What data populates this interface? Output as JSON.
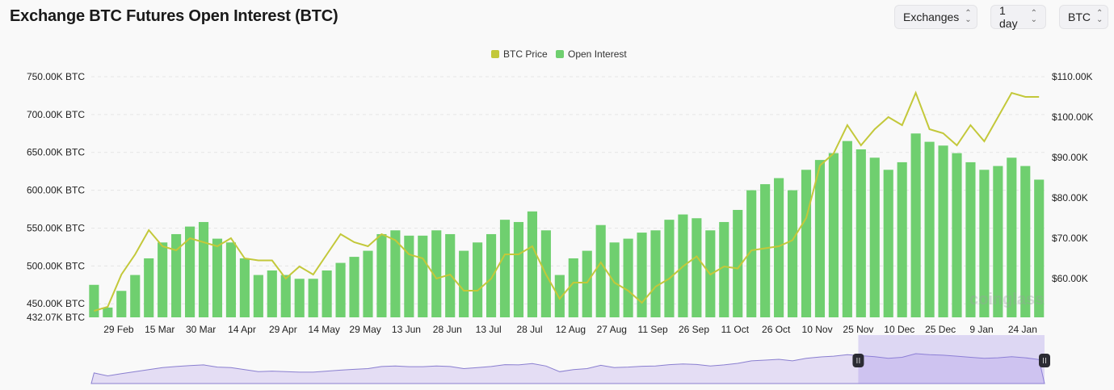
{
  "header": {
    "title": "Exchange BTC Futures Open Interest (BTC)"
  },
  "controls": [
    {
      "label": "Exchanges",
      "icon": "chevron-up-down-icon"
    },
    {
      "label": "1 day",
      "icon": "chevron-up-down-icon"
    },
    {
      "label": "BTC",
      "icon": "chevron-up-down-icon"
    }
  ],
  "watermark": "coinglass",
  "chart_data": {
    "type": "bar",
    "title": "Exchange BTC Futures Open Interest (BTC)",
    "legend": {
      "placement": "top-center",
      "entries": [
        {
          "name": "BTC Price",
          "color": "#c3c83a"
        },
        {
          "name": "Open Interest",
          "color": "#6fcf6f"
        }
      ]
    },
    "y_left": {
      "ticks": [
        "750.00K BTC",
        "700.00K BTC",
        "650.00K BTC",
        "600.00K BTC",
        "550.00K BTC",
        "500.00K BTC",
        "450.00K BTC",
        "432.07K BTC"
      ],
      "range": [
        432.07,
        750
      ]
    },
    "y_right": {
      "ticks": [
        "$110.00K",
        "$100.00K",
        "$90.00K",
        "$80.00K",
        "$70.00K",
        "$60.00K"
      ],
      "range": [
        50.4,
        110
      ]
    },
    "x_ticks": [
      "29 Feb",
      "15 Mar",
      "30 Mar",
      "14 Apr",
      "29 Apr",
      "14 May",
      "29 May",
      "13 Jun",
      "28 Jun",
      "13 Jul",
      "28 Jul",
      "12 Aug",
      "27 Aug",
      "11 Sep",
      "26 Sep",
      "11 Oct",
      "26 Oct",
      "10 Nov",
      "25 Nov",
      "10 Dec",
      "25 Dec",
      "9 Jan",
      "24 Jan"
    ],
    "x_tick_dates": [
      "2024-02-29",
      "2024-03-15",
      "2024-03-30",
      "2024-04-14",
      "2024-04-29",
      "2024-05-14",
      "2024-05-29",
      "2024-06-13",
      "2024-06-28",
      "2024-07-13",
      "2024-07-28",
      "2024-08-12",
      "2024-08-27",
      "2024-09-11",
      "2024-09-26",
      "2024-10-11",
      "2024-10-26",
      "2024-11-10",
      "2024-11-25",
      "2024-12-10",
      "2024-12-25",
      "2025-01-09",
      "2025-01-24"
    ],
    "x_range": [
      "2024-02-19",
      "2025-02-01"
    ],
    "dates": [
      "2024-02-20",
      "2024-02-25",
      "2024-03-01",
      "2024-03-06",
      "2024-03-11",
      "2024-03-16",
      "2024-03-21",
      "2024-03-26",
      "2024-03-31",
      "2024-04-05",
      "2024-04-10",
      "2024-04-15",
      "2024-04-20",
      "2024-04-25",
      "2024-04-30",
      "2024-05-05",
      "2024-05-10",
      "2024-05-15",
      "2024-05-20",
      "2024-05-25",
      "2024-05-30",
      "2024-06-04",
      "2024-06-09",
      "2024-06-14",
      "2024-06-19",
      "2024-06-24",
      "2024-06-29",
      "2024-07-04",
      "2024-07-09",
      "2024-07-14",
      "2024-07-19",
      "2024-07-24",
      "2024-07-29",
      "2024-08-03",
      "2024-08-08",
      "2024-08-13",
      "2024-08-18",
      "2024-08-23",
      "2024-08-28",
      "2024-09-02",
      "2024-09-07",
      "2024-09-12",
      "2024-09-17",
      "2024-09-22",
      "2024-09-27",
      "2024-10-02",
      "2024-10-07",
      "2024-10-12",
      "2024-10-17",
      "2024-10-22",
      "2024-10-27",
      "2024-11-01",
      "2024-11-06",
      "2024-11-11",
      "2024-11-16",
      "2024-11-21",
      "2024-11-26",
      "2024-12-01",
      "2024-12-06",
      "2024-12-11",
      "2024-12-16",
      "2024-12-21",
      "2024-12-26",
      "2024-12-31",
      "2025-01-05",
      "2025-01-10",
      "2025-01-15",
      "2025-01-20",
      "2025-01-25",
      "2025-01-30"
    ],
    "series": [
      {
        "name": "Open Interest",
        "unit": "K BTC",
        "axis": "left",
        "type": "bar",
        "color": "#6fcf6f",
        "values": [
          475,
          445,
          467,
          488,
          510,
          531,
          542,
          552,
          558,
          536,
          531,
          510,
          488,
          494,
          488,
          483,
          483,
          494,
          504,
          512,
          520,
          542,
          547,
          540,
          540,
          547,
          542,
          520,
          531,
          542,
          561,
          558,
          572,
          547,
          488,
          510,
          520,
          554,
          531,
          536,
          544,
          547,
          561,
          568,
          563,
          547,
          558,
          574,
          600,
          608,
          616,
          600,
          627,
          640,
          649,
          665,
          654,
          643,
          627,
          637,
          675,
          664,
          659,
          649,
          637,
          627,
          632,
          643,
          632,
          614
        ]
      },
      {
        "name": "BTC Price",
        "unit": "$K",
        "axis": "right",
        "type": "line",
        "color": "#c3c83a",
        "values": [
          52,
          53,
          61,
          66,
          72,
          68,
          67,
          70,
          69,
          68,
          70,
          65,
          64.5,
          64.5,
          60,
          63,
          61,
          66,
          71,
          69,
          68,
          71,
          69.5,
          66,
          65,
          60,
          61,
          57,
          57,
          60,
          66,
          66,
          68,
          61,
          55,
          59,
          59,
          64,
          59,
          57,
          54,
          58,
          60,
          63,
          65.5,
          61,
          63,
          62.5,
          67,
          67.5,
          68,
          69.5,
          75,
          88,
          91,
          98,
          93,
          97,
          100,
          98,
          106,
          97,
          96,
          93,
          98,
          94,
          100,
          106,
          105,
          105
        ]
      }
    ],
    "grid": true,
    "navigator": {
      "selected_range": [
        "2024-11-25",
        "2025-02-01"
      ]
    }
  }
}
